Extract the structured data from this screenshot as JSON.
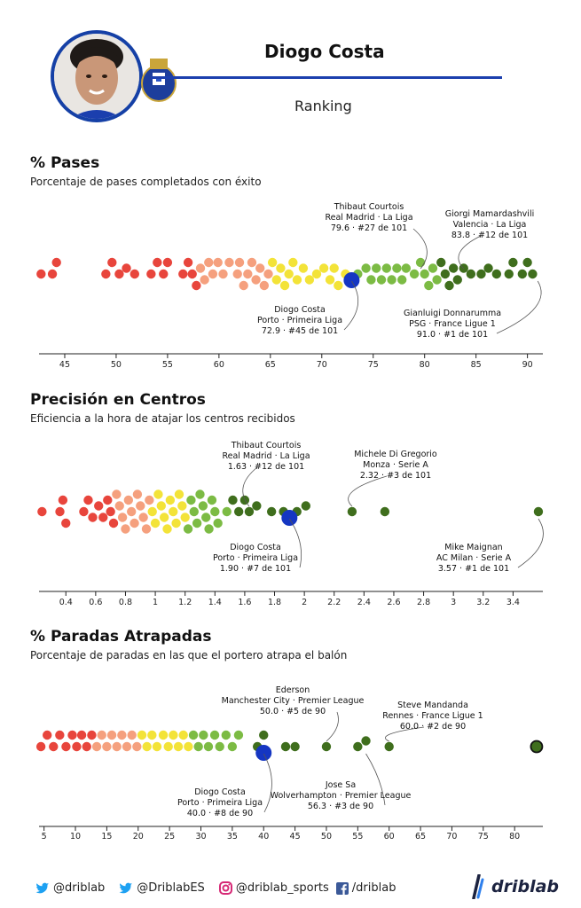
{
  "header": {
    "player_name": "Diogo Costa",
    "subtitle": "Ranking",
    "accent_color": "#1b3fae"
  },
  "sections": [
    {
      "title": "% Pases",
      "description": "Porcentaje de pases completados con éxito"
    },
    {
      "title": "Precisión en Centros",
      "description": "Eficiencia a la hora de atajar los centros recibidos"
    },
    {
      "title": "% Paradas Atrapadas",
      "description": "Porcentaje de paradas en las que el portero atrapa el balón"
    }
  ],
  "colors": {
    "red": "#e8453c",
    "salmon": "#f5a07e",
    "yellow": "#f3e338",
    "lightgreen": "#7cbb44",
    "darkgreen": "#3f6e1d",
    "highlight": "#1536c2",
    "ring": "#111111"
  },
  "chart_data": [
    {
      "type": "scatter",
      "title": "% Pases",
      "xlim": [
        42.5,
        91.5
      ],
      "ticks": [
        45,
        50,
        55,
        60,
        65,
        70,
        75,
        80,
        85,
        90
      ],
      "tick_labels": [
        "45",
        "50",
        "55",
        "60",
        "65",
        "70",
        "75",
        "80",
        "85",
        "90"
      ],
      "values": [
        42.7,
        43.8,
        44.2,
        49.0,
        49.6,
        50.3,
        51.0,
        51.8,
        53.4,
        54.0,
        54.6,
        55.0,
        56.5,
        57.0,
        57.4,
        57.8,
        58.2,
        58.6,
        59.0,
        59.4,
        59.9,
        60.4,
        61.0,
        61.8,
        62.0,
        62.4,
        62.8,
        63.2,
        63.6,
        64.0,
        64.4,
        64.8,
        65.2,
        65.6,
        66.0,
        66.4,
        66.8,
        67.2,
        67.6,
        68.2,
        68.8,
        69.5,
        70.2,
        70.8,
        71.2,
        71.6,
        72.3,
        73.5,
        74.3,
        74.8,
        75.3,
        75.8,
        76.3,
        76.8,
        77.3,
        77.8,
        78.2,
        79.0,
        79.6,
        80.0,
        80.4,
        80.8,
        81.2,
        81.6,
        82.0,
        82.4,
        82.8,
        83.2,
        83.8,
        84.5,
        85.5,
        86.2,
        87.0,
        88.2,
        88.6,
        89.5,
        90.0,
        90.5
      ],
      "player": {
        "name": "Diogo Costa",
        "value": 72.9
      },
      "ringed": [
        49.2
      ],
      "annotations": [
        {
          "lines": [
            "Diogo Costa",
            "Porto · Primeira Liga",
            "72.9 · #45 de 101"
          ],
          "value": 72.9
        },
        {
          "lines": [
            "Thibaut Courtois",
            "Real Madrid · La Liga",
            "79.6 · #27 de 101"
          ],
          "value": 79.6
        },
        {
          "lines": [
            "Giorgi Mamardashvili",
            "Valencia · La Liga",
            "83.8 · #12 de 101"
          ],
          "value": 83.8
        },
        {
          "lines": [
            "Gianluigi Donnarumma",
            "PSG · France Ligue 1",
            "91.0 · #1 de 101"
          ],
          "value": 91.0
        }
      ]
    },
    {
      "type": "scatter",
      "title": "Precisión en Centros",
      "xlim": [
        0.22,
        3.6
      ],
      "ticks": [
        0.4,
        0.6,
        0.8,
        1.0,
        1.2,
        1.4,
        1.6,
        1.8,
        2.0,
        2.2,
        2.4,
        2.6,
        2.8,
        3.0,
        3.2,
        3.4
      ],
      "tick_labels": [
        "0.4",
        "0.6",
        "0.8",
        "1",
        "1.2",
        "1.4",
        "1.6",
        "1.8",
        "2",
        "2.2",
        "2.4",
        "2.6",
        "2.8",
        "3",
        "3.2",
        "3.4"
      ],
      "values": [
        0.24,
        0.36,
        0.38,
        0.4,
        0.52,
        0.55,
        0.58,
        0.62,
        0.65,
        0.68,
        0.7,
        0.72,
        0.74,
        0.76,
        0.78,
        0.8,
        0.82,
        0.84,
        0.86,
        0.88,
        0.9,
        0.92,
        0.94,
        0.96,
        0.98,
        1.0,
        1.02,
        1.04,
        1.06,
        1.08,
        1.1,
        1.12,
        1.14,
        1.16,
        1.18,
        1.2,
        1.22,
        1.24,
        1.26,
        1.28,
        1.3,
        1.32,
        1.34,
        1.36,
        1.38,
        1.4,
        1.42,
        1.48,
        1.52,
        1.56,
        1.6,
        1.63,
        1.68,
        1.78,
        1.86,
        1.95,
        2.01,
        2.32,
        2.54,
        3.57
      ],
      "player": {
        "name": "Diogo Costa",
        "value": 1.9
      },
      "ringed": [
        1.13
      ],
      "annotations": [
        {
          "lines": [
            "Diogo Costa",
            "Porto · Primeira Liga",
            "1.90 · #7 de 101"
          ],
          "value": 1.9
        },
        {
          "lines": [
            "Thibaut Courtois",
            "Real Madrid · La Liga",
            "1.63 · #12 de 101"
          ],
          "value": 1.63
        },
        {
          "lines": [
            "Michele Di Gregorio",
            "Monza · Serie A",
            "2.32 · #3 de 101"
          ],
          "value": 2.32
        },
        {
          "lines": [
            "Mike Maignan",
            "AC Milan · Serie A",
            "3.57 · #1 de 101"
          ],
          "value": 3.57
        }
      ]
    },
    {
      "type": "scatter",
      "title": "% Paradas Atrapadas",
      "xlim": [
        4.2,
        84.5
      ],
      "ticks": [
        5,
        10,
        15,
        20,
        25,
        30,
        35,
        40,
        45,
        50,
        55,
        60,
        65,
        70,
        75,
        80
      ],
      "tick_labels": [
        "5",
        "10",
        "15",
        "20",
        "25",
        "30",
        "35",
        "40",
        "45",
        "50",
        "55",
        "60",
        "65",
        "70",
        "75",
        "80"
      ],
      "values": [
        4.5,
        5.5,
        6.5,
        7.5,
        8.5,
        9.5,
        10.2,
        11.0,
        11.8,
        12.6,
        13.4,
        14.2,
        15.0,
        15.8,
        16.6,
        17.4,
        18.2,
        19.0,
        19.8,
        20.6,
        21.4,
        22.2,
        23.0,
        24.0,
        24.8,
        25.6,
        26.4,
        27.2,
        28.0,
        28.8,
        29.6,
        30.4,
        31.2,
        32.2,
        33.0,
        34.0,
        35.0,
        36.0,
        39.0,
        40.0,
        43.5,
        45.0,
        50.0,
        55.0,
        56.3,
        60.0,
        83.5
      ],
      "player": {
        "name": "Diogo Costa",
        "value": 40.0
      },
      "ringed": [
        83.5
      ],
      "annotations": [
        {
          "lines": [
            "Diogo Costa",
            "Porto · Primeira Liga",
            "40.0 · #8 de 90"
          ],
          "value": 40.0
        },
        {
          "lines": [
            "Ederson",
            "Manchester City · Premier League",
            "50.0 · #5 de 90"
          ],
          "value": 50.0
        },
        {
          "lines": [
            "Steve Mandanda",
            "Rennes · France Ligue 1",
            "60.0 · #2 de 90"
          ],
          "value": 60.0
        },
        {
          "lines": [
            "Jose Sa",
            "Wolverhampton · Premier League",
            "56.3 · #3 de 90"
          ],
          "value": 56.3
        }
      ]
    }
  ],
  "footer": {
    "twitter1": "@driblab",
    "twitter2": "@DriblabES",
    "instagram": "@driblab_sports",
    "facebook": "/driblab",
    "brand": "driblab"
  }
}
